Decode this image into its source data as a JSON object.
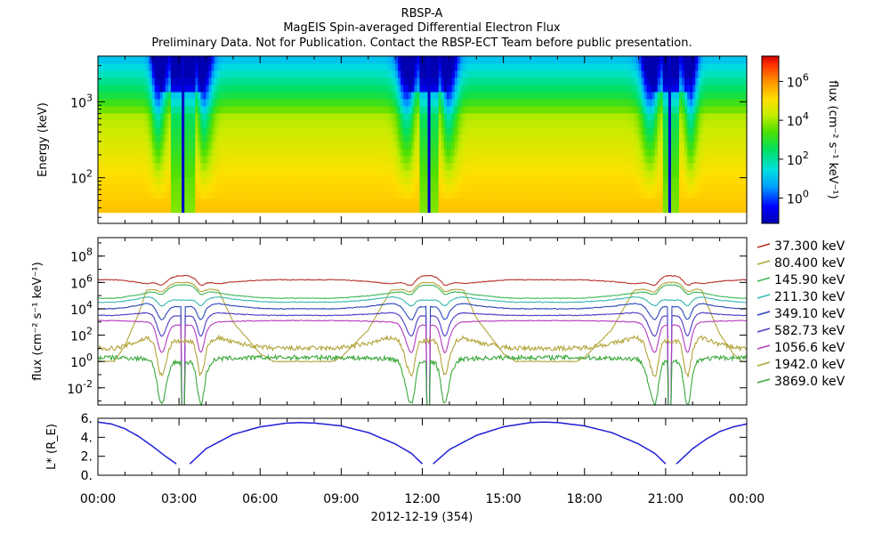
{
  "header": {
    "line1": "RBSP-A",
    "line2": "MagEIS Spin-averaged Differential Electron Flux",
    "line3": "Preliminary Data. Not for Publication. Contact the RBSP-ECT Team before public presentation."
  },
  "colors": {
    "spectrogram_background": "#ffffff",
    "axis": "#000000",
    "lstar_line": "#1f1fd6"
  },
  "chart_data": [
    {
      "type": "heatmap",
      "panel": "spectrogram",
      "ylabel": "Energy (keV)",
      "yscale": "log",
      "ylim": [
        25,
        4000
      ],
      "yticks": [
        {
          "value": 100,
          "label_base": "10",
          "label_exp": "2"
        },
        {
          "value": 1000,
          "label_base": "10",
          "label_exp": "3"
        }
      ],
      "colorbar": {
        "label": "flux (cm⁻² s⁻¹ keV⁻¹)",
        "scale": "log",
        "range": [
          -1.3,
          7.3
        ],
        "ticks": [
          {
            "value": 0,
            "label_base": "10",
            "label_exp": "0"
          },
          {
            "value": 2,
            "label_base": "10",
            "label_exp": "2"
          },
          {
            "value": 4,
            "label_base": "10",
            "label_exp": "4"
          },
          {
            "value": 6,
            "label_base": "10",
            "label_exp": "6"
          }
        ]
      },
      "energy_min_keV": 35,
      "energy_max_keV": 4000,
      "perigee_gaps_hours": [
        3.1,
        12.15,
        21.1
      ],
      "perigee_passes_hours": [
        [
          3.1,
          3.9
        ],
        [
          12.15,
          12.95
        ],
        [
          21.1,
          21.9
        ]
      ],
      "note_values": "log10 flux levels shown by colour"
    },
    {
      "type": "line",
      "panel": "flux",
      "ylabel": "flux (cm⁻² s⁻¹ keV⁻¹)",
      "yscale": "log",
      "ylim": [
        -3.3,
        9.4
      ],
      "yticks": [
        {
          "value": -2,
          "label_base": "10",
          "label_exp": "-2"
        },
        {
          "value": 0,
          "label_base": "10",
          "label_exp": "0"
        },
        {
          "value": 2,
          "label_base": "10",
          "label_exp": "2"
        },
        {
          "value": 4,
          "label_base": "10",
          "label_exp": "4"
        },
        {
          "value": 6,
          "label_base": "10",
          "label_exp": "6"
        },
        {
          "value": 8,
          "label_base": "10",
          "label_exp": "8"
        }
      ],
      "legend_position": "right",
      "series": [
        {
          "name": "37.300 keV",
          "color": "#b8322a",
          "quiet_log10_flux": 5.9,
          "apogee_log10_flux": 6.2,
          "dips": false
        },
        {
          "name": "80.400 keV",
          "color": "#b3a43a",
          "quiet_log10_flux": 5.4,
          "apogee_log10_flux": 0.0,
          "dips": false
        },
        {
          "name": "145.90 keV",
          "color": "#3db85a",
          "quiet_log10_flux": 5.2,
          "apogee_log10_flux": 4.8,
          "dips": false
        },
        {
          "name": "211.30 keV",
          "color": "#37b8b0",
          "quiet_log10_flux": 4.9,
          "apogee_log10_flux": 4.5,
          "dips": false
        },
        {
          "name": "349.10 keV",
          "color": "#2c48b8",
          "quiet_log10_flux": 4.4,
          "apogee_log10_flux": 4.0,
          "dips": true
        },
        {
          "name": "582.73 keV",
          "color": "#4a3cc4",
          "quiet_log10_flux": 3.7,
          "apogee_log10_flux": 3.5,
          "dips": true
        },
        {
          "name": "1056.6 keV",
          "color": "#b43cbf",
          "quiet_log10_flux": 3.0,
          "apogee_log10_flux": 3.1,
          "dips": true
        },
        {
          "name": "1942.0 keV",
          "color": "#b2a43a",
          "quiet_log10_flux": 1.8,
          "apogee_log10_flux": 1.0,
          "dips": false
        },
        {
          "name": "3869.0 keV",
          "color": "#3aa83a",
          "quiet_log10_flux": 0.2,
          "apogee_log10_flux": 0.3,
          "dips": true
        }
      ]
    },
    {
      "type": "line",
      "panel": "lstar",
      "ylabel": "L* (R_E)",
      "ylim": [
        0,
        6
      ],
      "yticks": [
        {
          "value": 0,
          "label": "0."
        },
        {
          "value": 2,
          "label": "2."
        },
        {
          "value": 4,
          "label": "4."
        },
        {
          "value": 6,
          "label": "6."
        }
      ],
      "series": [
        {
          "name": "",
          "segments": [
            {
              "x": [
                0,
                0.5,
                1,
                1.5,
                2,
                2.5,
                2.9
              ],
              "y": [
                5.6,
                5.4,
                4.9,
                4.1,
                3.1,
                2.0,
                1.2
              ]
            },
            {
              "x": [
                3.4,
                4,
                5,
                6,
                7,
                7.5,
                8,
                9,
                10,
                11,
                11.6,
                12.0
              ],
              "y": [
                1.2,
                2.8,
                4.3,
                5.1,
                5.5,
                5.55,
                5.5,
                5.2,
                4.5,
                3.3,
                2.3,
                1.2
              ]
            },
            {
              "x": [
                12.4,
                13,
                14,
                15,
                16,
                16.5,
                17,
                18,
                19,
                20,
                20.6,
                21.0
              ],
              "y": [
                1.2,
                2.7,
                4.2,
                5.1,
                5.55,
                5.6,
                5.55,
                5.2,
                4.5,
                3.3,
                2.3,
                1.2
              ]
            },
            {
              "x": [
                21.4,
                22,
                22.5,
                23,
                23.5,
                24
              ],
              "y": [
                1.2,
                2.8,
                3.8,
                4.6,
                5.1,
                5.4
              ]
            }
          ]
        }
      ]
    }
  ],
  "xaxis": {
    "range_hours": [
      0,
      24
    ],
    "ticks": [
      {
        "value": 0,
        "label": "00:00"
      },
      {
        "value": 3,
        "label": "03:00"
      },
      {
        "value": 6,
        "label": "06:00"
      },
      {
        "value": 9,
        "label": "09:00"
      },
      {
        "value": 12,
        "label": "12:00"
      },
      {
        "value": 15,
        "label": "15:00"
      },
      {
        "value": 18,
        "label": "18:00"
      },
      {
        "value": 21,
        "label": "21:00"
      },
      {
        "value": 24,
        "label": "00:00"
      }
    ],
    "minor_step_hours": 1,
    "date_label": "2012-12-19 (354)"
  }
}
